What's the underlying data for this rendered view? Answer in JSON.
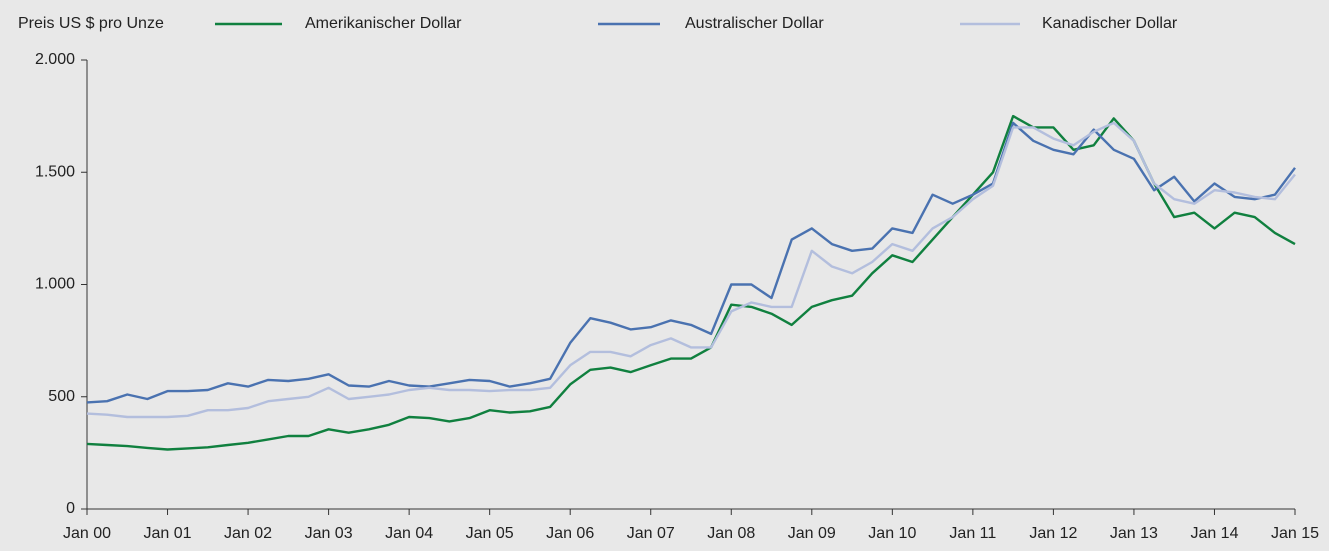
{
  "chart_data": {
    "type": "line",
    "y_label": "Preis US $ pro Unze",
    "categories": [
      "Jan 00",
      null,
      null,
      null,
      "Jan 01",
      null,
      null,
      null,
      "Jan 02",
      null,
      null,
      null,
      "Jan 03",
      null,
      null,
      null,
      "Jan 04",
      null,
      null,
      null,
      "Jan 05",
      null,
      null,
      null,
      "Jan 06",
      null,
      null,
      null,
      "Jan 07",
      null,
      null,
      null,
      "Jan 08",
      null,
      null,
      null,
      "Jan 09",
      null,
      null,
      null,
      "Jan 10",
      null,
      null,
      null,
      "Jan 11",
      null,
      null,
      null,
      "Jan 12",
      null,
      null,
      null,
      "Jan 13",
      null,
      null,
      null,
      "Jan 14",
      null,
      null,
      null,
      "Jan 15"
    ],
    "series": [
      {
        "name": "Amerikanischer Dollar",
        "color": "#10803f",
        "values": [
          290,
          285,
          280,
          272,
          265,
          270,
          275,
          285,
          295,
          310,
          325,
          325,
          355,
          340,
          355,
          375,
          410,
          405,
          390,
          405,
          440,
          430,
          435,
          455,
          555,
          620,
          630,
          610,
          640,
          670,
          670,
          720,
          910,
          900,
          870,
          820,
          900,
          930,
          950,
          1050,
          1130,
          1100,
          1200,
          1300,
          1400,
          1500,
          1750,
          1700,
          1700,
          1600,
          1620,
          1740,
          1640,
          1450,
          1300,
          1320,
          1250,
          1320,
          1300,
          1230,
          1180
        ]
      },
      {
        "name": "Australischer Dollar",
        "color": "#4a72b0",
        "values": [
          475,
          480,
          510,
          490,
          525,
          525,
          530,
          560,
          545,
          575,
          570,
          580,
          600,
          550,
          545,
          570,
          550,
          545,
          560,
          575,
          570,
          545,
          560,
          580,
          740,
          850,
          830,
          800,
          810,
          840,
          820,
          780,
          1000,
          1000,
          940,
          1200,
          1250,
          1180,
          1150,
          1160,
          1250,
          1230,
          1400,
          1360,
          1400,
          1450,
          1720,
          1640,
          1600,
          1580,
          1690,
          1600,
          1560,
          1420,
          1480,
          1370,
          1450,
          1390,
          1380,
          1400,
          1520
        ]
      },
      {
        "name": "Kanadischer Dollar",
        "color": "#b3bedd",
        "values": [
          425,
          420,
          410,
          410,
          410,
          415,
          440,
          440,
          450,
          480,
          490,
          500,
          540,
          490,
          500,
          510,
          530,
          540,
          530,
          530,
          525,
          530,
          530,
          540,
          640,
          700,
          700,
          680,
          730,
          760,
          720,
          720,
          880,
          920,
          900,
          900,
          1150,
          1080,
          1050,
          1100,
          1180,
          1150,
          1250,
          1300,
          1380,
          1440,
          1700,
          1700,
          1650,
          1620,
          1680,
          1720,
          1640,
          1450,
          1380,
          1360,
          1420,
          1410,
          1390,
          1380,
          1490
        ]
      }
    ],
    "ylim": [
      0,
      2000
    ],
    "yticks": [
      0,
      500,
      {
        "value": 1000,
        "label": "1.000"
      },
      {
        "value": 1500,
        "label": "1.500"
      },
      {
        "value": 2000,
        "label": "2.000"
      }
    ]
  }
}
